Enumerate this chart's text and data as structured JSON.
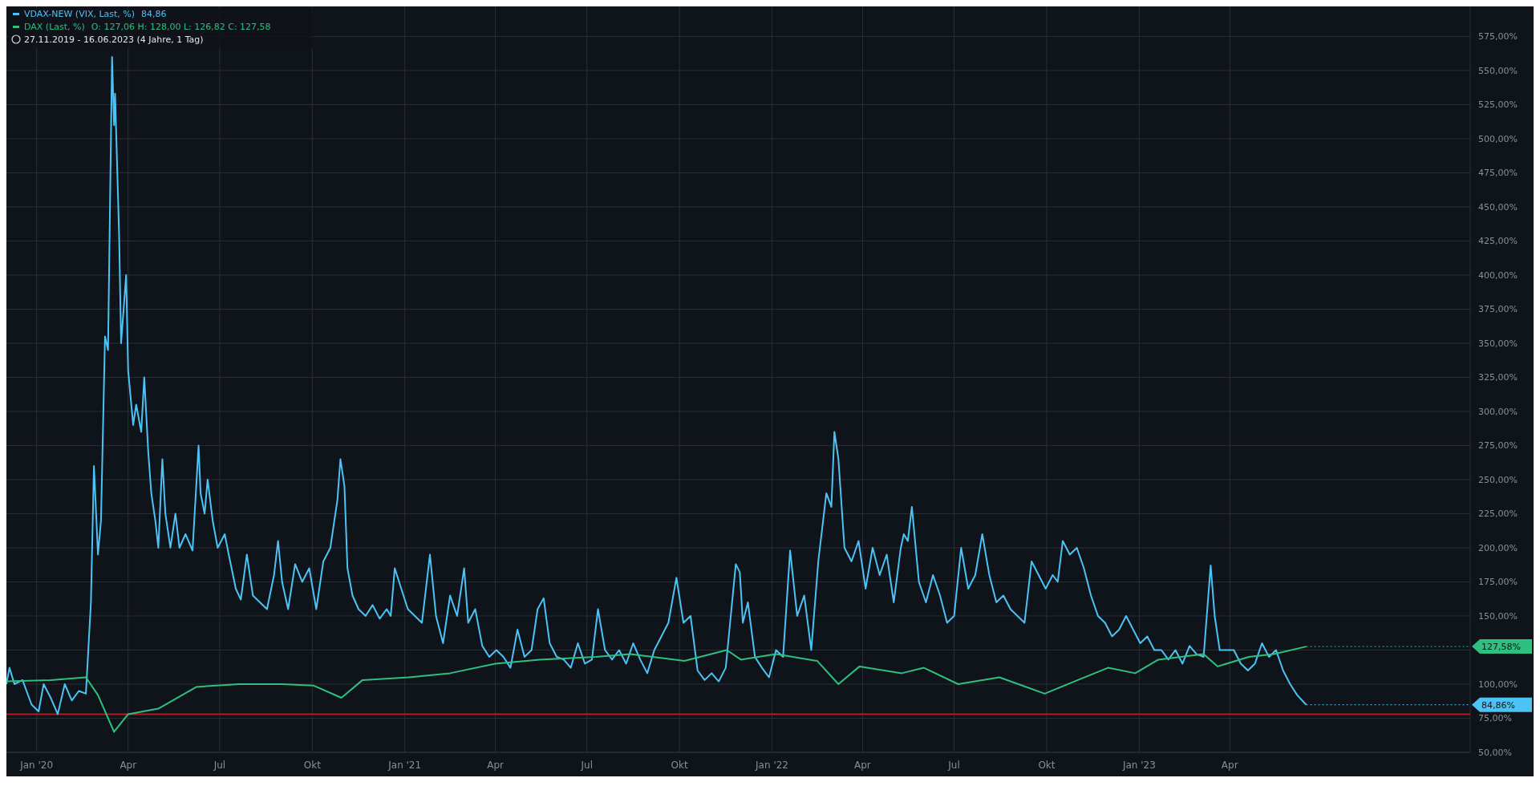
{
  "chart_data": {
    "type": "line",
    "subtitle": "27.11.2019 - 16.06.2023  (4 Jahre, 1 Tag)",
    "xlim": [
      "2019-12-02",
      "2023-11-26"
    ],
    "xticks": [
      {
        "value": "2020-01-01",
        "label": "Jan '20"
      },
      {
        "value": "2020-04-01",
        "label": "Apr"
      },
      {
        "value": "2020-07-01",
        "label": "Jul"
      },
      {
        "value": "2020-10-01",
        "label": "Okt"
      },
      {
        "value": "2021-01-01",
        "label": "Jan '21"
      },
      {
        "value": "2021-04-01",
        "label": "Apr"
      },
      {
        "value": "2021-07-01",
        "label": "Jul"
      },
      {
        "value": "2021-10-01",
        "label": "Okt"
      },
      {
        "value": "2022-01-01",
        "label": "Jan '22"
      },
      {
        "value": "2022-04-01",
        "label": "Apr"
      },
      {
        "value": "2022-07-01",
        "label": "Jul"
      },
      {
        "value": "2022-10-01",
        "label": "Okt"
      },
      {
        "value": "2023-01-01",
        "label": "Jan '23"
      },
      {
        "value": "2023-04-01",
        "label": "Apr"
      }
    ],
    "ylim": [
      50,
      597
    ],
    "yticks": [
      {
        "value": 50,
        "label": "50,00%"
      },
      {
        "value": 75,
        "label": "75,00%"
      },
      {
        "value": 100,
        "label": "100,00%"
      },
      {
        "value": 125,
        "label": null
      },
      {
        "value": 150,
        "label": "150,00%"
      },
      {
        "value": 175,
        "label": "175,00%"
      },
      {
        "value": 200,
        "label": "200,00%"
      },
      {
        "value": 225,
        "label": "225,00%"
      },
      {
        "value": 250,
        "label": "250,00%"
      },
      {
        "value": 275,
        "label": "275,00%"
      },
      {
        "value": 300,
        "label": "300,00%"
      },
      {
        "value": 325,
        "label": "325,00%"
      },
      {
        "value": 350,
        "label": "350,00%"
      },
      {
        "value": 375,
        "label": "375,00%"
      },
      {
        "value": 400,
        "label": "400,00%"
      },
      {
        "value": 425,
        "label": "425,00%"
      },
      {
        "value": 450,
        "label": "450,00%"
      },
      {
        "value": 475,
        "label": "475,00%"
      },
      {
        "value": 500,
        "label": "500,00%"
      },
      {
        "value": 525,
        "label": "525,00%"
      },
      {
        "value": 550,
        "label": "550,00%"
      },
      {
        "value": 575,
        "label": "575,00%"
      }
    ],
    "grid": true,
    "legend": "top left",
    "ref_lines": [
      {
        "axis": "y",
        "value": 78,
        "color": "#b71c1c"
      }
    ],
    "annotations": [
      "84,86",
      "O: 127,06  H: 128,00  L: 126,82  C: 127,58",
      {
        "text": "127,58%",
        "x": "2023-06-16",
        "y": 127.58
      },
      {
        "text": "84,86%",
        "x": "2023-06-16",
        "y": 84.86
      }
    ],
    "series": [
      {
        "name": "VDAX-NEW (VIX, Last, %)",
        "color": "#4cc3f5",
        "x": [
          "2019-12-02",
          "2019-12-05",
          "2019-12-10",
          "2019-12-18",
          "2019-12-27",
          "2020-01-03",
          "2020-01-08",
          "2020-01-15",
          "2020-01-22",
          "2020-01-29",
          "2020-02-05",
          "2020-02-12",
          "2020-02-19",
          "2020-02-24",
          "2020-02-27",
          "2020-03-02",
          "2020-03-05",
          "2020-03-09",
          "2020-03-12",
          "2020-03-16",
          "2020-03-18",
          "2020-03-19",
          "2020-03-23",
          "2020-03-25",
          "2020-03-27",
          "2020-03-30",
          "2020-04-01",
          "2020-04-06",
          "2020-04-09",
          "2020-04-14",
          "2020-04-17",
          "2020-04-21",
          "2020-04-24",
          "2020-04-28",
          "2020-05-01",
          "2020-05-05",
          "2020-05-08",
          "2020-05-13",
          "2020-05-18",
          "2020-05-22",
          "2020-05-28",
          "2020-06-04",
          "2020-06-10",
          "2020-06-12",
          "2020-06-16",
          "2020-06-19",
          "2020-06-24",
          "2020-06-29",
          "2020-07-06",
          "2020-07-10",
          "2020-07-17",
          "2020-07-22",
          "2020-07-28",
          "2020-08-03",
          "2020-08-10",
          "2020-08-17",
          "2020-08-24",
          "2020-08-28",
          "2020-09-01",
          "2020-09-07",
          "2020-09-14",
          "2020-09-21",
          "2020-09-28",
          "2020-10-05",
          "2020-10-12",
          "2020-10-19",
          "2020-10-26",
          "2020-10-29",
          "2020-11-02",
          "2020-11-05",
          "2020-11-10",
          "2020-11-16",
          "2020-11-23",
          "2020-11-30",
          "2020-12-07",
          "2020-12-14",
          "2020-12-18",
          "2020-12-22",
          "2021-01-04",
          "2021-01-11",
          "2021-01-18",
          "2021-01-26",
          "2021-02-01",
          "2021-02-08",
          "2021-02-15",
          "2021-02-22",
          "2021-03-01",
          "2021-03-05",
          "2021-03-12",
          "2021-03-19",
          "2021-03-26",
          "2021-04-02",
          "2021-04-09",
          "2021-04-16",
          "2021-04-23",
          "2021-04-30",
          "2021-05-07",
          "2021-05-13",
          "2021-05-19",
          "2021-05-25",
          "2021-06-01",
          "2021-06-08",
          "2021-06-15",
          "2021-06-22",
          "2021-06-29",
          "2021-07-06",
          "2021-07-12",
          "2021-07-19",
          "2021-07-26",
          "2021-08-02",
          "2021-08-09",
          "2021-08-16",
          "2021-08-23",
          "2021-08-30",
          "2021-09-06",
          "2021-09-13",
          "2021-09-20",
          "2021-09-28",
          "2021-10-05",
          "2021-10-12",
          "2021-10-19",
          "2021-10-26",
          "2021-11-02",
          "2021-11-09",
          "2021-11-16",
          "2021-11-26",
          "2021-11-30",
          "2021-12-03",
          "2021-12-08",
          "2021-12-15",
          "2021-12-22",
          "2021-12-29",
          "2022-01-05",
          "2022-01-12",
          "2022-01-19",
          "2022-01-26",
          "2022-02-02",
          "2022-02-09",
          "2022-02-16",
          "2022-02-24",
          "2022-03-01",
          "2022-03-04",
          "2022-03-08",
          "2022-03-14",
          "2022-03-21",
          "2022-03-28",
          "2022-04-04",
          "2022-04-11",
          "2022-04-18",
          "2022-04-25",
          "2022-05-02",
          "2022-05-09",
          "2022-05-12",
          "2022-05-16",
          "2022-05-20",
          "2022-05-27",
          "2022-06-03",
          "2022-06-10",
          "2022-06-17",
          "2022-06-24",
          "2022-07-01",
          "2022-07-08",
          "2022-07-15",
          "2022-07-22",
          "2022-07-29",
          "2022-08-05",
          "2022-08-12",
          "2022-08-19",
          "2022-08-26",
          "2022-09-02",
          "2022-09-09",
          "2022-09-16",
          "2022-09-23",
          "2022-09-30",
          "2022-10-07",
          "2022-10-12",
          "2022-10-17",
          "2022-10-24",
          "2022-10-31",
          "2022-11-07",
          "2022-11-14",
          "2022-11-21",
          "2022-11-28",
          "2022-12-05",
          "2022-12-12",
          "2022-12-19",
          "2023-01-02",
          "2023-01-09",
          "2023-01-16",
          "2023-01-23",
          "2023-01-30",
          "2023-02-06",
          "2023-02-13",
          "2023-02-20",
          "2023-02-27",
          "2023-03-06",
          "2023-03-13",
          "2023-03-17",
          "2023-03-22",
          "2023-03-29",
          "2023-04-05",
          "2023-04-12",
          "2023-04-19",
          "2023-04-26",
          "2023-05-03",
          "2023-05-10",
          "2023-05-17",
          "2023-05-24",
          "2023-05-31",
          "2023-06-07",
          "2023-06-16"
        ],
        "values": [
          100,
          112,
          100,
          103,
          85,
          80,
          100,
          90,
          78,
          100,
          88,
          95,
          93,
          160,
          260,
          195,
          220,
          355,
          345,
          560,
          510,
          533,
          430,
          350,
          370,
          400,
          330,
          290,
          305,
          285,
          325,
          270,
          240,
          220,
          200,
          265,
          225,
          200,
          225,
          200,
          210,
          198,
          275,
          240,
          225,
          250,
          220,
          200,
          210,
          195,
          170,
          162,
          195,
          165,
          160,
          155,
          180,
          205,
          175,
          155,
          188,
          175,
          185,
          155,
          190,
          200,
          235,
          265,
          245,
          185,
          165,
          155,
          150,
          158,
          148,
          155,
          150,
          185,
          155,
          150,
          145,
          195,
          150,
          130,
          165,
          150,
          185,
          145,
          155,
          128,
          120,
          125,
          120,
          112,
          140,
          120,
          125,
          155,
          163,
          130,
          120,
          118,
          112,
          130,
          115,
          118,
          155,
          125,
          118,
          125,
          115,
          130,
          118,
          108,
          125,
          135,
          145,
          178,
          145,
          150,
          110,
          103,
          108,
          102,
          112,
          188,
          182,
          145,
          160,
          120,
          112,
          105,
          125,
          120,
          198,
          150,
          165,
          125,
          190,
          240,
          230,
          285,
          265,
          200,
          190,
          205,
          170,
          200,
          180,
          195,
          160,
          200,
          210,
          205,
          230,
          175,
          160,
          180,
          165,
          145,
          150,
          200,
          170,
          180,
          210,
          180,
          160,
          165,
          155,
          150,
          145,
          190,
          180,
          170,
          180,
          175,
          205,
          195,
          200,
          185,
          165,
          150,
          145,
          135,
          140,
          150,
          130,
          135,
          125,
          125,
          118,
          125,
          115,
          128,
          122,
          120,
          187,
          150,
          125,
          125,
          125,
          115,
          110,
          115,
          130,
          120,
          125,
          110,
          100,
          92,
          84.86
        ]
      },
      {
        "name": "DAX (Last, %)",
        "color": "#2fbf7f",
        "x": [
          "2019-12-02",
          "2020-01-15",
          "2020-02-19",
          "2020-03-02",
          "2020-03-18",
          "2020-04-01",
          "2020-05-01",
          "2020-06-08",
          "2020-07-20",
          "2020-09-01",
          "2020-10-02",
          "2020-10-30",
          "2020-11-20",
          "2021-01-05",
          "2021-02-15",
          "2021-04-01",
          "2021-05-15",
          "2021-07-10",
          "2021-08-13",
          "2021-10-06",
          "2021-11-17",
          "2021-12-01",
          "2022-01-05",
          "2022-02-15",
          "2022-03-08",
          "2022-03-29",
          "2022-05-10",
          "2022-06-01",
          "2022-07-05",
          "2022-08-15",
          "2022-09-29",
          "2022-11-01",
          "2022-12-01",
          "2022-12-28",
          "2023-01-20",
          "2023-03-06",
          "2023-03-20",
          "2023-04-20",
          "2023-05-15",
          "2023-06-16"
        ],
        "values": [
          102,
          103,
          105,
          92,
          65,
          78,
          82,
          98,
          100,
          100,
          99,
          90,
          103,
          105,
          108,
          115,
          118,
          120,
          122,
          117,
          125,
          118,
          122,
          117,
          100,
          113,
          108,
          112,
          100,
          105,
          93,
          103,
          112,
          108,
          118,
          122,
          113,
          120,
          122,
          127.58
        ]
      }
    ]
  }
}
